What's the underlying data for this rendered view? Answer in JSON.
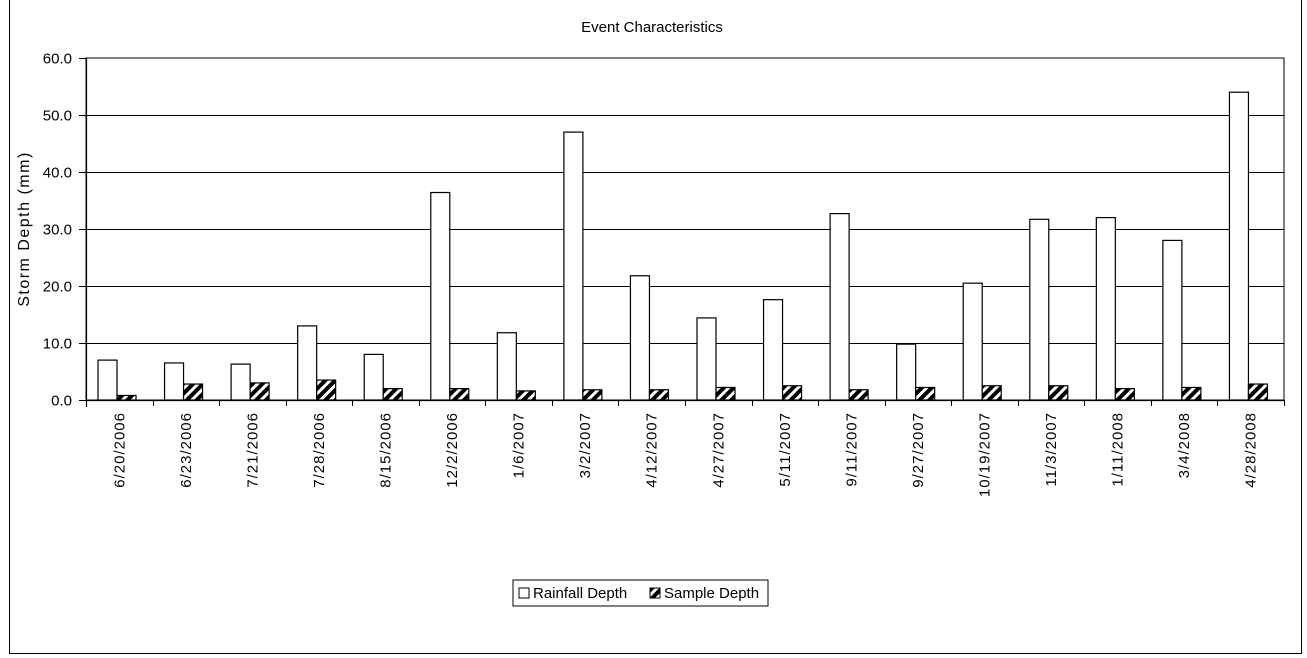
{
  "chart_data": {
    "type": "bar",
    "title": "Event Characteristics",
    "ylabel": "Storm Depth (mm)",
    "xlabel": "",
    "ylim": [
      0,
      60
    ],
    "yticks": [
      "0.0",
      "10.0",
      "20.0",
      "30.0",
      "40.0",
      "50.0",
      "60.0"
    ],
    "grid": true,
    "legend_position": "bottom",
    "categories": [
      "6/20/2006",
      "6/23/2006",
      "7/21/2006",
      "7/28/2006",
      "8/15/2006",
      "12/2/2006",
      "1/6/2007",
      "3/2/2007",
      "4/12/2007",
      "4/27/2007",
      "5/11/2007",
      "9/11/2007",
      "9/27/2007",
      "10/19/2007",
      "11/3/2007",
      "1/11/2008",
      "3/4/2008",
      "4/28/2008"
    ],
    "series": [
      {
        "name": "Rainfall Depth",
        "fill": "#ffffff",
        "values": [
          7.0,
          6.5,
          6.3,
          13.0,
          8.0,
          36.4,
          11.8,
          47.0,
          21.8,
          14.4,
          17.6,
          32.7,
          9.8,
          20.5,
          31.7,
          32.0,
          28.0,
          54.0
        ]
      },
      {
        "name": "Sample Depth",
        "fill": "hatched",
        "values": [
          0.8,
          2.8,
          3.0,
          3.5,
          2.0,
          2.0,
          1.6,
          1.8,
          1.8,
          2.2,
          2.5,
          1.8,
          2.2,
          2.5,
          2.5,
          2.0,
          2.2,
          2.8
        ]
      }
    ]
  }
}
